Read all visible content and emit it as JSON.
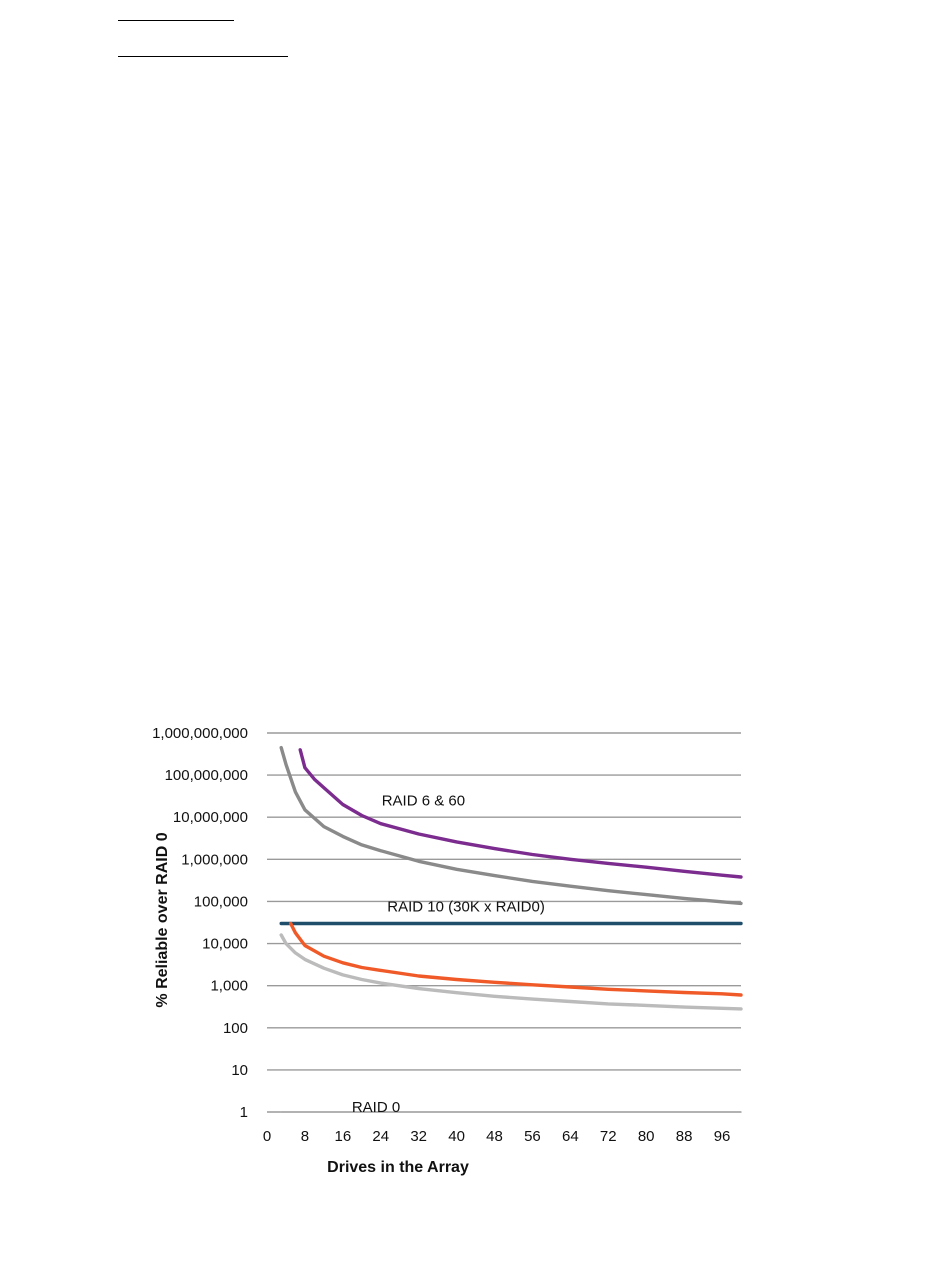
{
  "chart_data": {
    "type": "line",
    "title": "",
    "xlabel": "Drives in the Array",
    "ylabel": "% Reliable over RAID 0",
    "x_ticks": [
      0,
      8,
      16,
      24,
      32,
      40,
      48,
      56,
      64,
      72,
      80,
      88,
      96
    ],
    "xlim": [
      0,
      100
    ],
    "y_scale": "log",
    "ylim": [
      1,
      1000000000
    ],
    "y_ticks": [
      1,
      10,
      100,
      1000,
      10000,
      100000,
      1000000,
      10000000,
      100000000,
      1000000000
    ],
    "y_tick_labels": [
      "1",
      "10",
      "100",
      "1,000",
      "10,000",
      "100,000",
      "1,000,000",
      "10,000,000",
      "100,000,000",
      "1,000,000,000"
    ],
    "grid": "horizontal",
    "annotations": [
      {
        "text": "RAID 6 & 60",
        "x": 33,
        "y": 25000000
      },
      {
        "text": "RAID 10 (30K x RAID0)",
        "x": 42,
        "y": 75000
      },
      {
        "text": "RAID 0",
        "x": 23,
        "y": 1.3
      }
    ],
    "series": [
      {
        "color": "#7b2c8e",
        "x": [
          7,
          8,
          10,
          12,
          16,
          20,
          24,
          32,
          40,
          48,
          56,
          64,
          72,
          80,
          88,
          96,
          100
        ],
        "values": [
          400000000,
          150000000,
          80000000,
          50000000,
          20000000,
          11000000,
          7000000,
          4000000,
          2600000,
          1800000,
          1300000,
          1000000,
          800000,
          650000,
          520000,
          420000,
          380000
        ]
      },
      {
        "color": "#8a8a8a",
        "x": [
          3,
          4,
          6,
          8,
          12,
          16,
          20,
          24,
          32,
          40,
          48,
          56,
          64,
          72,
          80,
          88,
          96,
          100
        ],
        "values": [
          450000000,
          180000000,
          40000000,
          15000000,
          6000000,
          3500000,
          2200000,
          1600000,
          900000,
          580000,
          410000,
          300000,
          230000,
          180000,
          145000,
          118000,
          98000,
          90000
        ]
      },
      {
        "color": "#1f4e6b",
        "x": [
          3,
          100
        ],
        "values": [
          30000,
          30000
        ]
      },
      {
        "color": "#f05a28",
        "x": [
          5,
          6,
          8,
          12,
          16,
          20,
          24,
          32,
          40,
          48,
          56,
          64,
          72,
          80,
          88,
          96,
          100
        ],
        "values": [
          30000,
          18000,
          9000,
          5000,
          3500,
          2700,
          2300,
          1700,
          1400,
          1200,
          1050,
          930,
          820,
          750,
          690,
          640,
          600
        ]
      },
      {
        "color": "#bbbbbb",
        "x": [
          3,
          4,
          6,
          8,
          12,
          16,
          20,
          24,
          32,
          40,
          48,
          56,
          64,
          72,
          80,
          88,
          96,
          100
        ],
        "values": [
          16000,
          10000,
          6000,
          4200,
          2600,
          1800,
          1400,
          1150,
          850,
          680,
          560,
          480,
          420,
          370,
          340,
          310,
          290,
          280
        ]
      },
      {
        "color": "#aaaaaa",
        "x": [
          3,
          100
        ],
        "values": [
          1,
          1
        ]
      }
    ]
  }
}
